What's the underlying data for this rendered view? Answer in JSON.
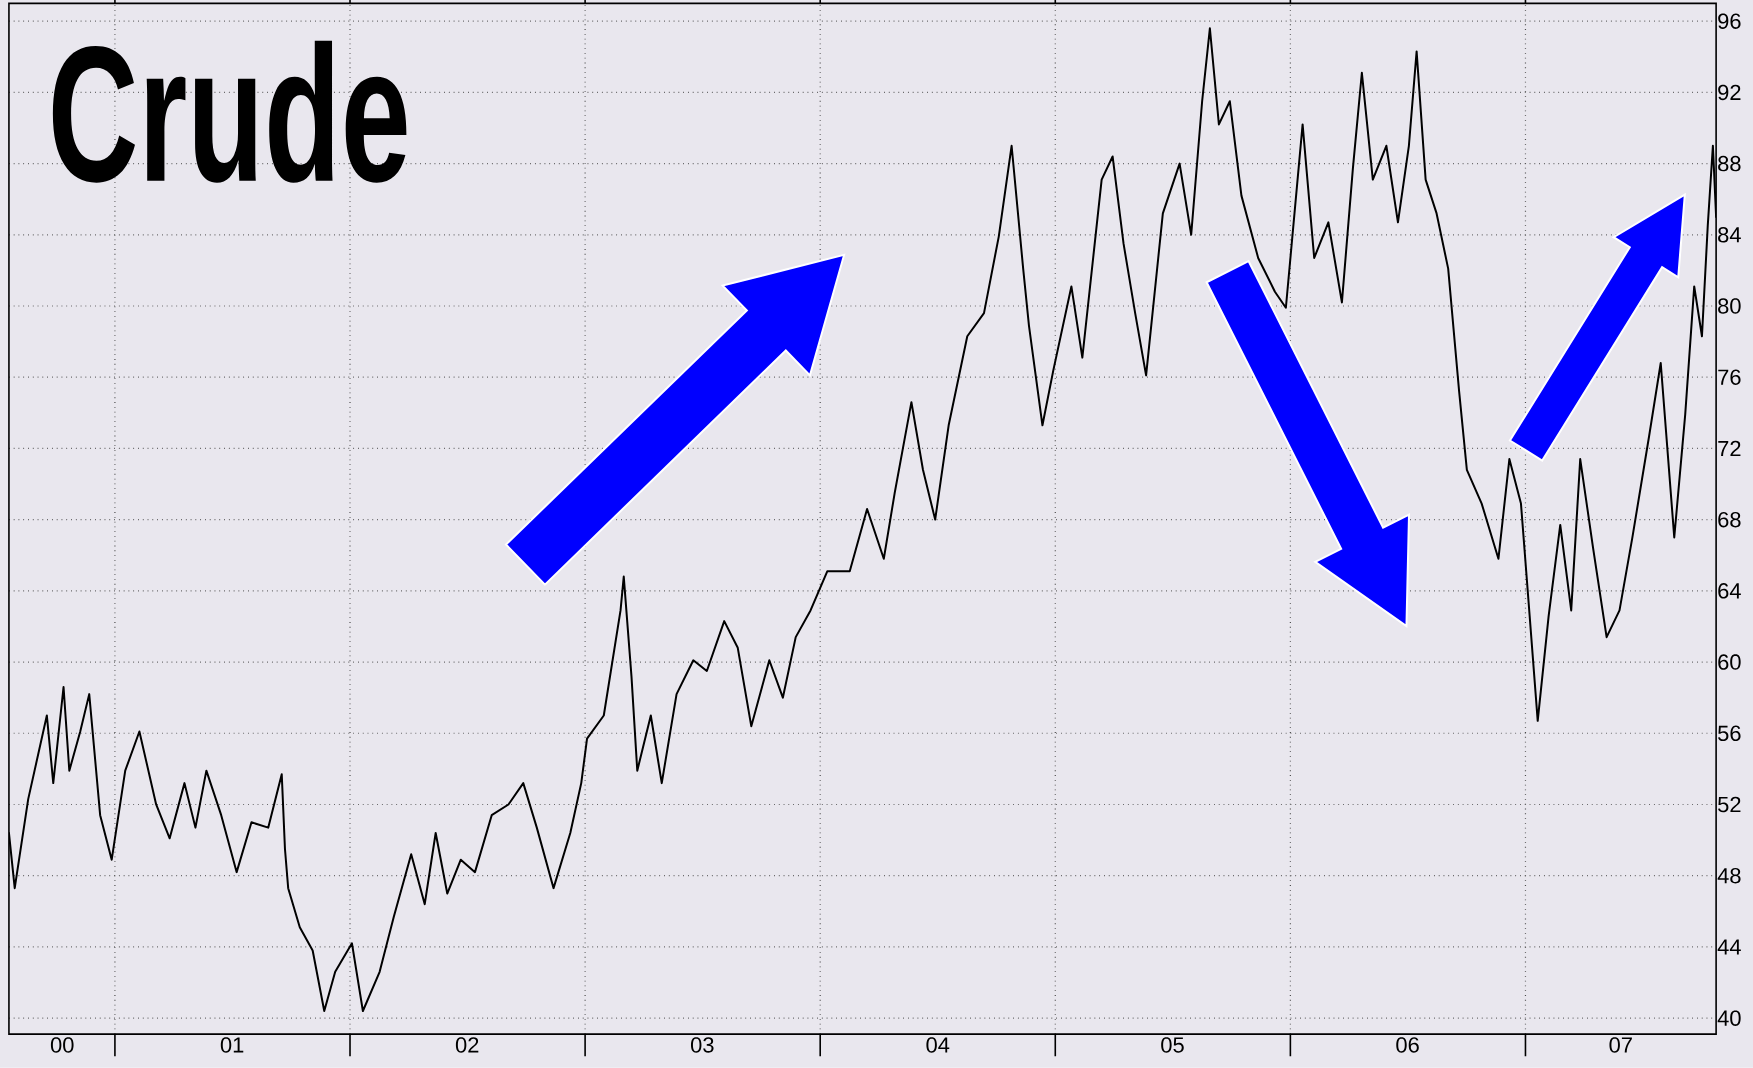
{
  "chart_data": {
    "type": "line",
    "title": "Crude",
    "x": [
      "2000-07-20",
      "2000-07-29",
      "2000-08-19",
      "2000-09-17",
      "2000-09-27",
      "2000-10-13",
      "2000-10-22",
      "2000-11-08",
      "2000-11-22",
      "2000-12-09",
      "2000-12-27",
      "2001-01-17",
      "2001-02-08",
      "2001-03-06",
      "2001-03-27",
      "2001-04-19",
      "2001-05-06",
      "2001-05-23",
      "2001-06-15",
      "2001-07-09",
      "2001-08-01",
      "2001-08-27",
      "2001-09-17",
      "2001-09-22",
      "2001-09-27",
      "2001-10-15",
      "2001-11-04",
      "2001-11-22",
      "2001-12-09",
      "2002-01-04",
      "2002-01-21",
      "2002-02-16",
      "2002-03-10",
      "2002-04-06",
      "2002-04-27",
      "2002-05-14",
      "2002-06-01",
      "2002-06-22",
      "2002-07-14",
      "2002-08-09",
      "2002-09-04",
      "2002-09-27",
      "2002-10-18",
      "2002-11-13",
      "2002-12-09",
      "2002-12-26",
      "2003-01-04",
      "2003-01-30",
      "2003-02-25",
      "2003-03-02",
      "2003-03-14",
      "2003-03-23",
      "2003-04-13",
      "2003-04-30",
      "2003-05-23",
      "2003-06-18",
      "2003-07-09",
      "2003-08-05",
      "2003-08-26",
      "2003-09-16",
      "2003-10-14",
      "2003-11-04",
      "2003-11-24",
      "2003-12-17",
      "2004-01-12",
      "2004-02-16",
      "2004-03-14",
      "2004-04-09",
      "2004-04-26",
      "2004-05-22",
      "2004-06-09",
      "2004-06-28",
      "2004-07-19",
      "2004-08-17",
      "2004-09-12",
      "2004-10-05",
      "2004-10-25",
      "2004-11-12",
      "2004-11-21",
      "2004-12-12",
      "2004-12-29",
      "2005-01-26",
      "2005-02-12",
      "2005-03-14",
      "2005-03-31",
      "2005-04-17",
      "2005-05-05",
      "2005-05-22",
      "2005-06-17",
      "2005-07-13",
      "2005-07-31",
      "2005-08-17",
      "2005-08-29",
      "2005-09-12",
      "2005-09-29",
      "2005-10-17",
      "2005-11-12",
      "2005-12-08",
      "2005-12-25",
      "2006-01-20",
      "2006-02-07",
      "2006-03-01",
      "2006-03-22",
      "2006-04-08",
      "2006-04-22",
      "2006-05-09",
      "2006-05-30",
      "2006-06-17",
      "2006-07-04",
      "2006-07-16",
      "2006-07-30",
      "2006-08-16",
      "2006-09-03",
      "2006-09-20",
      "2006-10-02",
      "2006-10-25",
      "2006-11-20",
      "2006-12-07",
      "2006-12-25",
      "2007-01-06",
      "2007-01-20",
      "2007-02-06",
      "2007-02-24",
      "2007-03-13",
      "2007-03-27",
      "2007-04-16",
      "2007-05-07",
      "2007-05-27",
      "2007-06-16",
      "2007-07-12",
      "2007-07-30",
      "2007-08-20",
      "2007-09-06",
      "2007-09-20",
      "2007-10-02",
      "2007-10-11",
      "2007-10-19",
      "2007-10-24"
    ],
    "series": [
      {
        "color": "#000000",
        "values": [
          50.4,
          47.3,
          52.3,
          57.0,
          53.2,
          58.6,
          53.9,
          56.1,
          58.2,
          51.4,
          48.9,
          53.9,
          56.1,
          52.0,
          50.1,
          53.2,
          50.7,
          53.9,
          51.4,
          48.2,
          51.0,
          50.7,
          53.7,
          49.5,
          47.3,
          45.1,
          43.8,
          40.4,
          42.6,
          44.2,
          40.4,
          42.6,
          45.7,
          49.2,
          46.4,
          50.4,
          47.0,
          48.9,
          48.2,
          51.4,
          52.0,
          53.2,
          50.7,
          47.3,
          50.4,
          53.2,
          55.7,
          57.0,
          62.9,
          64.8,
          59.2,
          53.9,
          57.0,
          53.2,
          58.2,
          60.1,
          59.5,
          62.3,
          60.8,
          56.4,
          60.1,
          58.0,
          61.4,
          62.9,
          65.1,
          65.1,
          68.6,
          65.8,
          69.5,
          74.6,
          70.8,
          68.0,
          73.3,
          78.3,
          79.6,
          83.9,
          89.0,
          82.1,
          78.9,
          73.3,
          76.4,
          81.1,
          77.1,
          87.1,
          88.4,
          83.5,
          79.6,
          76.1,
          85.2,
          88.0,
          84.0,
          91.5,
          95.6,
          90.2,
          91.5,
          86.2,
          82.7,
          80.8,
          79.9,
          90.2,
          82.7,
          84.7,
          80.2,
          87.7,
          93.1,
          87.1,
          89.0,
          84.7,
          89.0,
          94.3,
          87.1,
          85.2,
          82.1,
          75.2,
          70.8,
          68.9,
          65.8,
          71.4,
          68.9,
          63.3,
          56.7,
          62.6,
          67.7,
          62.9,
          71.4,
          66.4,
          61.4,
          62.9,
          67.0,
          72.7,
          76.8,
          67.0,
          73.9,
          81.1,
          78.3,
          84.5,
          89.0,
          85.0
        ]
      }
    ],
    "xlim": [
      "2000-07-20",
      "2007-10-24"
    ],
    "ylim": [
      39.1,
      97
    ],
    "xticks": [
      {
        "value": "2001-01-01",
        "label": null
      },
      {
        "value": "2002-01-01",
        "label": null
      },
      {
        "value": "2003-01-01",
        "label": null
      },
      {
        "value": "2004-01-01",
        "label": null
      },
      {
        "value": "2005-01-01",
        "label": null
      },
      {
        "value": "2006-01-01",
        "label": null
      },
      {
        "value": "2007-01-01",
        "label": null
      },
      {
        "value": "2000-10-11",
        "label": "00"
      },
      {
        "value": "2001-07-02",
        "label": "01"
      },
      {
        "value": "2002-07-02",
        "label": "02"
      },
      {
        "value": "2003-07-02",
        "label": "03"
      },
      {
        "value": "2004-07-02",
        "label": "04"
      },
      {
        "value": "2005-07-02",
        "label": "05"
      },
      {
        "value": "2006-07-02",
        "label": "06"
      },
      {
        "value": "2007-05-29",
        "label": "07"
      }
    ],
    "yticks": [
      40,
      44,
      48,
      52,
      56,
      60,
      64,
      68,
      72,
      76,
      80,
      84,
      88,
      92,
      96
    ],
    "grid": true
  }
}
